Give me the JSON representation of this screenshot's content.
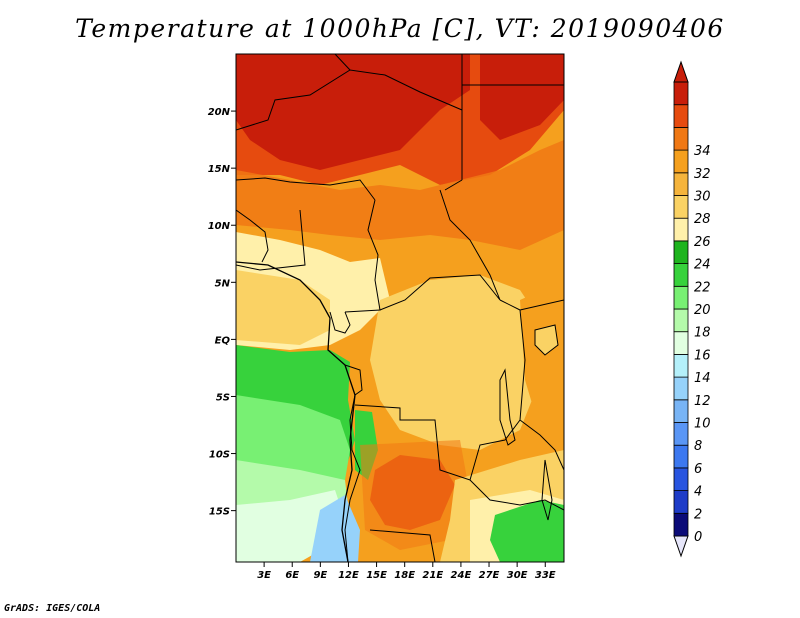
{
  "title": "Temperature at 1000hPa [C], VT: 2019090406",
  "credit": "GrADS: IGES/COLA",
  "map": {
    "lat_ticks": [
      "20N",
      "15N",
      "10N",
      "5N",
      "EQ",
      "5S",
      "10S",
      "15S"
    ],
    "lat_values": [
      20,
      15,
      10,
      5,
      0,
      -5,
      -10,
      -15
    ],
    "lon_ticks": [
      "3E",
      "6E",
      "9E",
      "12E",
      "15E",
      "18E",
      "21E",
      "24E",
      "27E",
      "30E",
      "33E"
    ],
    "lon_values": [
      3,
      6,
      9,
      12,
      15,
      18,
      21,
      24,
      27,
      30,
      33
    ],
    "lon_range": [
      0,
      35
    ],
    "lat_range": [
      -19.5,
      25
    ]
  },
  "colorbar": {
    "labels": [
      "0",
      "2",
      "4",
      "6",
      "8",
      "10",
      "12",
      "14",
      "16",
      "18",
      "20",
      "22",
      "24",
      "26",
      "28",
      "30",
      "32",
      "34"
    ],
    "colors": [
      "#e6e6fa",
      "#0b0b78",
      "#1e3cc8",
      "#2855e0",
      "#3c78f0",
      "#5a96f5",
      "#78b4f5",
      "#96d2fa",
      "#b4f0fa",
      "#e1ffe1",
      "#b4faaa",
      "#78f073",
      "#37d23c",
      "#1eb41e",
      "#fff0aa",
      "#fad264",
      "#f5b43c",
      "#f5a01e",
      "#f07814",
      "#e64b0f",
      "#c81e0a",
      "#c81e0a"
    ]
  },
  "fields": [
    {
      "name": "north-hot-zone",
      "color": "#d62a0a"
    },
    {
      "name": "sahel-orange",
      "color": "#f07814"
    },
    {
      "name": "central-warm",
      "color": "#f5a01e"
    },
    {
      "name": "congo-basin",
      "color": "#fad264"
    },
    {
      "name": "gulf-coast",
      "color": "#fff0aa"
    },
    {
      "name": "atlantic-green",
      "color": "#37d23c"
    },
    {
      "name": "atlantic-light-green",
      "color": "#78f073"
    },
    {
      "name": "atlantic-pale",
      "color": "#b4faaa"
    },
    {
      "name": "benguela-pale",
      "color": "#e1ffe1"
    },
    {
      "name": "benguela-blue",
      "color": "#96d2fa"
    },
    {
      "name": "angola-hot",
      "color": "#e64b0f"
    },
    {
      "name": "zambia-green",
      "color": "#1eb41e"
    }
  ]
}
